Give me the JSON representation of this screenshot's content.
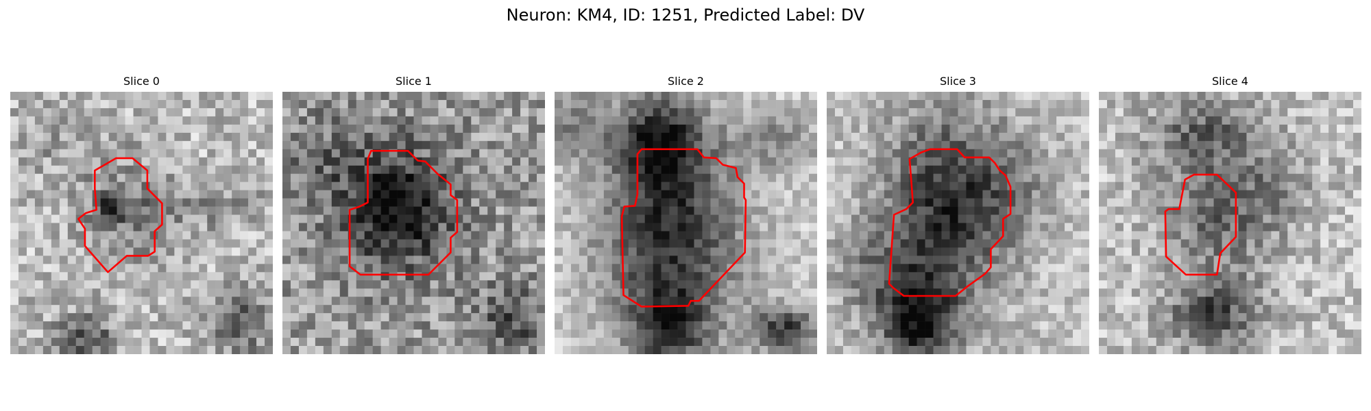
{
  "figure": {
    "title": "Neuron: KM4, ID: 1251, Predicted Label: DV"
  },
  "panels": [
    {
      "title": "Slice 0"
    },
    {
      "title": "Slice 1"
    },
    {
      "title": "Slice 2"
    },
    {
      "title": "Slice 3"
    },
    {
      "title": "Slice 4"
    }
  ],
  "colors": {
    "contour": "#ff0000",
    "background": "#ffffff"
  }
}
